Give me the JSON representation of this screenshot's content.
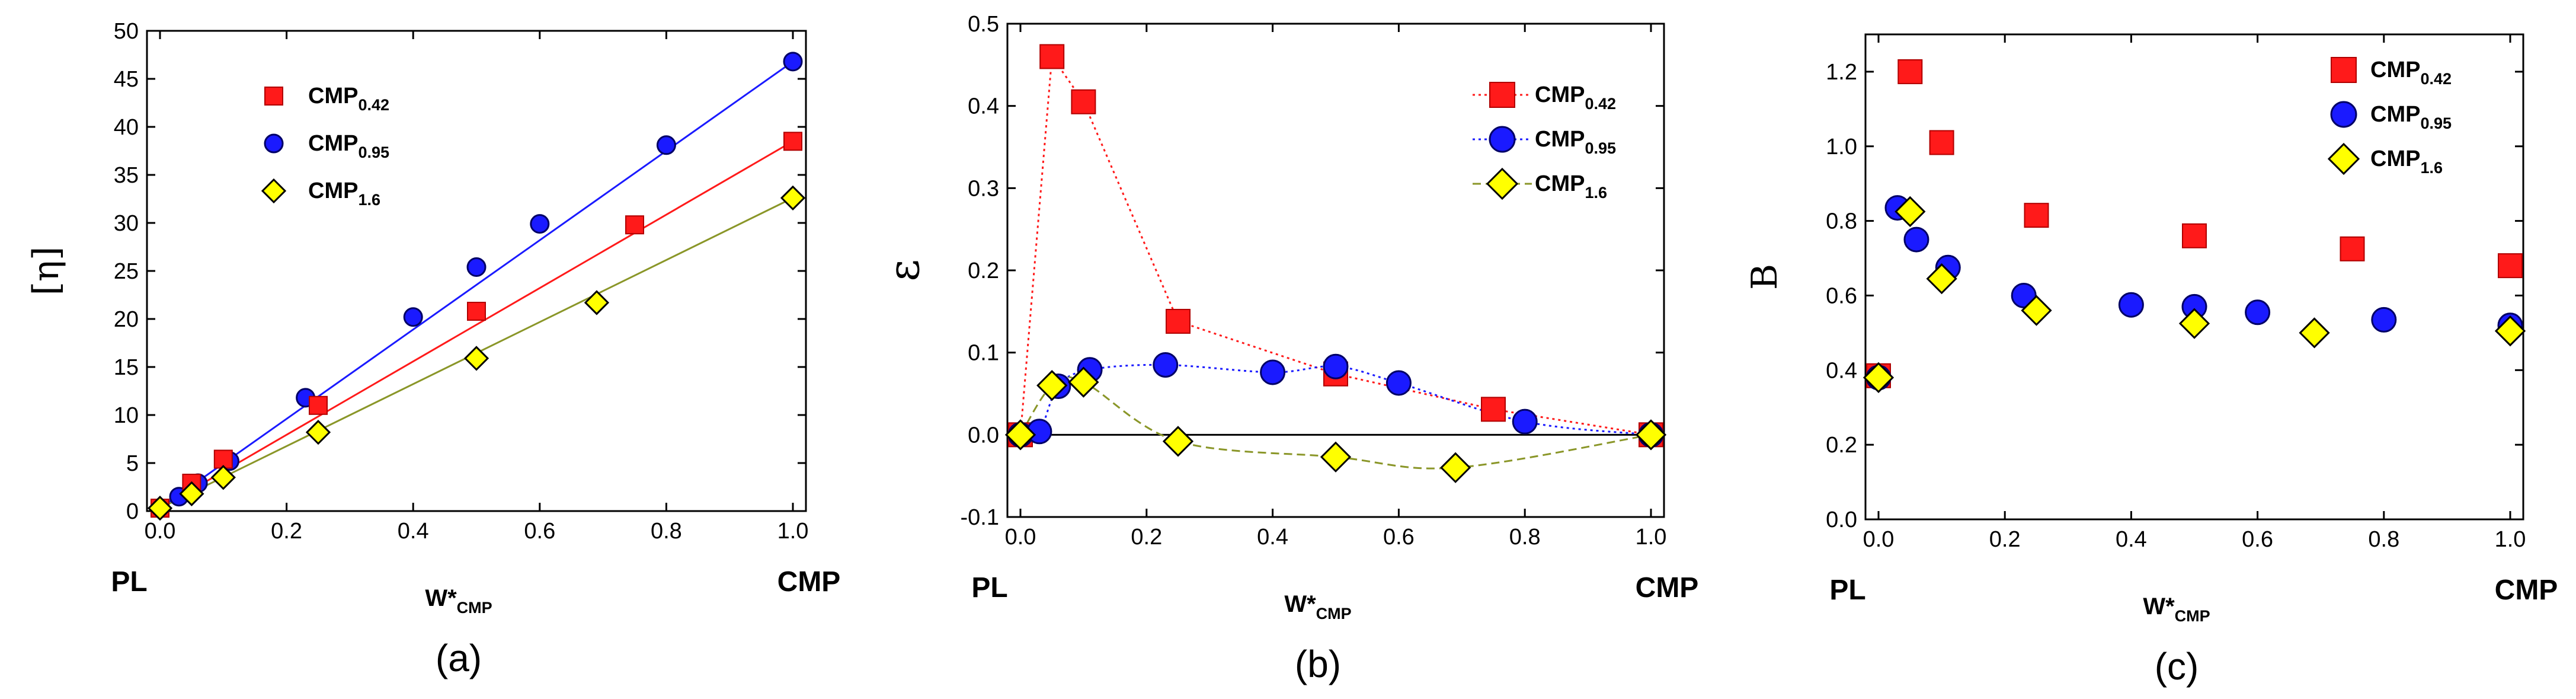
{
  "colors": {
    "CMP0.42": "#ff1a1a",
    "CMP0.95": "#1a1aff",
    "CMP1.6": "#ffff00",
    "fit_CMP1.6": "#8a9628"
  },
  "chart_data": [
    {
      "type": "scatter",
      "panel": "(a)",
      "ylabel": "[η]",
      "xlabel_main": "W*",
      "xlabel_sub": "CMP",
      "left_label": "PL",
      "right_label": "CMP",
      "xlim": [
        0,
        1.0
      ],
      "ylim": [
        0,
        50
      ],
      "xticks": [
        "0.0",
        "0.2",
        "0.4",
        "0.6",
        "0.8",
        "1.0"
      ],
      "yticks": [
        "0",
        "5",
        "10",
        "15",
        "20",
        "25",
        "30",
        "35",
        "40",
        "45",
        "50"
      ],
      "series": [
        {
          "name_main": "CMP",
          "name_sub": "0.42",
          "marker": "square",
          "color": "#ff1a1a",
          "x": [
            0,
            0.05,
            0.1,
            0.25,
            0.5,
            0.75,
            1.0
          ],
          "y": [
            0.3,
            2.9,
            5.4,
            11.0,
            20.8,
            29.8,
            38.5
          ],
          "fit": [
            [
              0,
              0.3
            ],
            [
              1.0,
              38.5
            ]
          ]
        },
        {
          "name_main": "CMP",
          "name_sub": "0.95",
          "marker": "circle",
          "color": "#1a1aff",
          "x": [
            0,
            0.03,
            0.06,
            0.11,
            0.23,
            0.4,
            0.5,
            0.6,
            0.8,
            1.0
          ],
          "y": [
            0.3,
            1.5,
            2.9,
            5.2,
            11.8,
            20.2,
            25.4,
            29.9,
            38.1,
            46.8
          ],
          "fit": [
            [
              0,
              0.3
            ],
            [
              1.0,
              46.8
            ]
          ]
        },
        {
          "name_main": "CMP",
          "name_sub": "1.6",
          "marker": "diamond",
          "color": "#ffff00",
          "x": [
            0,
            0.05,
            0.1,
            0.25,
            0.5,
            0.69,
            1.0
          ],
          "y": [
            0.3,
            1.8,
            3.5,
            8.2,
            15.9,
            21.7,
            32.6
          ],
          "fit": [
            [
              0,
              0.3
            ],
            [
              1.0,
              32.6
            ]
          ]
        }
      ],
      "caption": "(a)"
    },
    {
      "type": "line",
      "panel": "(b)",
      "ylabel": "ε",
      "xlabel_main": "W*",
      "xlabel_sub": "CMP",
      "left_label": "PL",
      "right_label": "CMP",
      "xlim": [
        0,
        1.0
      ],
      "ylim": [
        -0.1,
        0.5
      ],
      "xticks": [
        "0.0",
        "0.2",
        "0.4",
        "0.6",
        "0.8",
        "1.0"
      ],
      "yticks": [
        "-0.1",
        "0.0",
        "0.1",
        "0.2",
        "0.3",
        "0.4",
        "0.5"
      ],
      "zero_line": true,
      "series": [
        {
          "name_main": "CMP",
          "name_sub": "0.42",
          "marker": "square",
          "color": "#ff1a1a",
          "x": [
            0,
            0.05,
            0.1,
            0.25,
            0.5,
            0.75,
            1.0
          ],
          "y": [
            0.0,
            0.46,
            0.405,
            0.138,
            0.074,
            0.031,
            0.0
          ]
        },
        {
          "name_main": "CMP",
          "name_sub": "0.95",
          "marker": "circle",
          "color": "#1a1aff",
          "x": [
            0,
            0.03,
            0.06,
            0.11,
            0.23,
            0.4,
            0.5,
            0.6,
            0.8,
            1.0
          ],
          "y": [
            0.0,
            0.004,
            0.059,
            0.079,
            0.085,
            0.076,
            0.083,
            0.063,
            0.016,
            0.0
          ]
        },
        {
          "name_main": "CMP",
          "name_sub": "1.6",
          "marker": "diamond",
          "color": "#ffff00",
          "x": [
            0,
            0.05,
            0.1,
            0.25,
            0.5,
            0.69,
            1.0
          ],
          "y": [
            0.0,
            0.06,
            0.064,
            -0.008,
            -0.027,
            -0.04,
            0.0
          ]
        }
      ],
      "caption": "(b)"
    },
    {
      "type": "scatter",
      "panel": "(c)",
      "ylabel": "B",
      "xlabel_main": "W*",
      "xlabel_sub": "CMP",
      "left_label": "PL",
      "right_label": "CMP",
      "xlim": [
        0,
        1.0
      ],
      "ylim": [
        0,
        1.3
      ],
      "xticks": [
        "0.0",
        "0.2",
        "0.4",
        "0.6",
        "0.8",
        "1.0"
      ],
      "yticks": [
        "0.0",
        "0.2",
        "0.4",
        "0.6",
        "0.8",
        "1.0",
        "1.2"
      ],
      "series": [
        {
          "name_main": "CMP",
          "name_sub": "0.42",
          "marker": "square",
          "color": "#ff1a1a",
          "x": [
            0.0,
            0.05,
            0.1,
            0.25,
            0.5,
            0.75,
            1.0
          ],
          "y": [
            0.385,
            1.2,
            1.01,
            0.815,
            0.76,
            0.725,
            0.68
          ]
        },
        {
          "name_main": "CMP",
          "name_sub": "0.95",
          "marker": "circle",
          "color": "#1a1aff",
          "x": [
            0.0,
            0.03,
            0.06,
            0.11,
            0.23,
            0.4,
            0.5,
            0.6,
            0.8,
            1.0
          ],
          "y": [
            0.38,
            0.835,
            0.75,
            0.675,
            0.6,
            0.575,
            0.57,
            0.555,
            0.535,
            0.52
          ]
        },
        {
          "name_main": "CMP",
          "name_sub": "1.6",
          "marker": "diamond",
          "color": "#ffff00",
          "x": [
            0.0,
            0.05,
            0.1,
            0.25,
            0.5,
            0.69,
            1.0
          ],
          "y": [
            0.38,
            0.825,
            0.645,
            0.56,
            0.525,
            0.5,
            0.505
          ]
        }
      ],
      "caption": "(c)"
    }
  ]
}
